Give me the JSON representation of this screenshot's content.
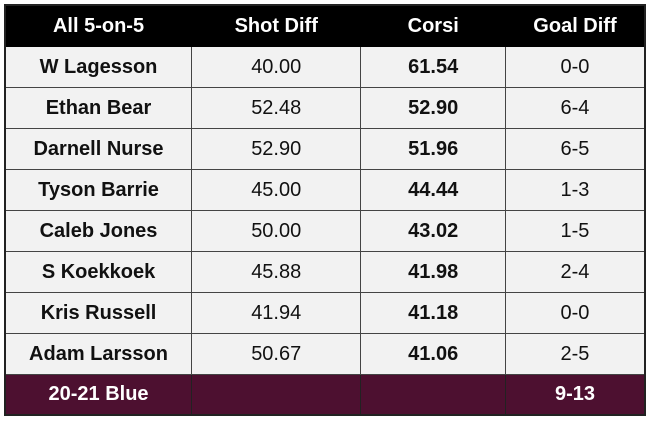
{
  "table": {
    "header": [
      "All 5-on-5",
      "Shot Diff",
      "Corsi",
      "Goal Diff"
    ],
    "rows": [
      [
        "W Lagesson",
        "40.00",
        "61.54",
        "0-0"
      ],
      [
        "Ethan Bear",
        "52.48",
        "52.90",
        "6-4"
      ],
      [
        "Darnell Nurse",
        "52.90",
        "51.96",
        "6-5"
      ],
      [
        "Tyson Barrie",
        "45.00",
        "44.44",
        "1-3"
      ],
      [
        "Caleb Jones",
        "50.00",
        "43.02",
        "1-5"
      ],
      [
        "S Koekkoek",
        "45.88",
        "41.98",
        "2-4"
      ],
      [
        "Kris Russell",
        "41.94",
        "41.18",
        "0-0"
      ],
      [
        "Adam Larsson",
        "50.67",
        "41.06",
        "2-5"
      ]
    ],
    "footer": {
      "label": "20-21 Blue",
      "goal_diff": "9-13"
    }
  }
}
